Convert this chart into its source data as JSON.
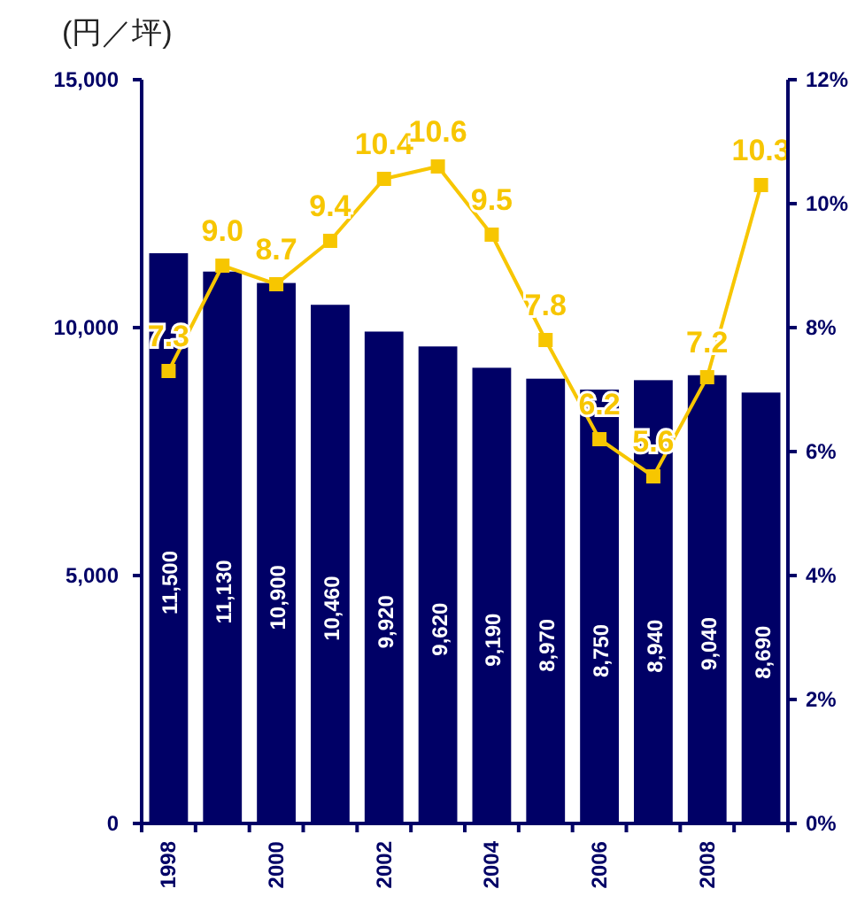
{
  "chart_data": {
    "type": "bar",
    "ylabel": "(円／坪)",
    "categories": [
      "1998",
      null,
      "2000",
      null,
      "2002",
      null,
      "2004",
      null,
      "2006",
      null,
      "2008",
      null
    ],
    "series": [
      {
        "color": "#000066",
        "values": [
          11500,
          11130,
          10900,
          10460,
          9920,
          9620,
          9190,
          8970,
          8750,
          8940,
          9040,
          8690
        ],
        "value_labels": [
          "11,500",
          "11,130",
          "10,900",
          "10,460",
          "9,920",
          "9,620",
          "9,190",
          "8,970",
          "8,750",
          "8,940",
          "9,040",
          "8,690"
        ]
      },
      {
        "type": "line",
        "axis": "y2",
        "color": "#f7c600",
        "values": [
          7.3,
          9.0,
          8.7,
          9.4,
          10.4,
          10.6,
          9.5,
          7.8,
          6.2,
          5.6,
          7.2,
          10.3
        ],
        "value_labels": [
          "7.3",
          "9.0",
          "8.7",
          "9.4",
          "10.4",
          "10.6",
          "9.5",
          "7.8",
          "6.2",
          "5.6",
          "7.2",
          "10.3"
        ]
      }
    ],
    "ylim": [
      0,
      15000
    ],
    "yticks": [
      {
        "value": 0,
        "label": "0"
      },
      {
        "value": 5000,
        "label": "5,000"
      },
      {
        "value": 10000,
        "label": "10,000"
      },
      {
        "value": 15000,
        "label": "15,000"
      }
    ],
    "y2lim": [
      0,
      12
    ],
    "y2ticks": [
      {
        "value": 0,
        "label": "0%"
      },
      {
        "value": 2,
        "label": "2%"
      },
      {
        "value": 4,
        "label": "4%"
      },
      {
        "value": 6,
        "label": "6%"
      },
      {
        "value": 8,
        "label": "8%"
      },
      {
        "value": 10,
        "label": "10%"
      },
      {
        "value": 12,
        "label": "12%"
      }
    ],
    "marker": "square",
    "grid": false
  }
}
